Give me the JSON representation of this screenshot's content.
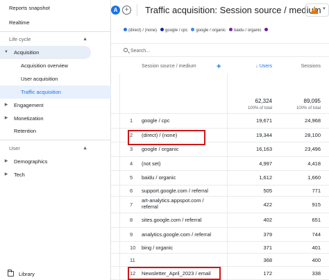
{
  "sidebar": {
    "reports_snapshot": "Reports snapshot",
    "realtime": "Realtime",
    "life_cycle": "Life cycle",
    "acquisition": "Acquisition",
    "acquisition_overview": "Acquisition overview",
    "user_acquisition": "User acquisition",
    "traffic_acquisition": "Traffic acquisition",
    "engagement": "Engagement",
    "monetization": "Monetization",
    "retention": "Retention",
    "user": "User",
    "demographics": "Demographics",
    "tech": "Tech",
    "library": "Library"
  },
  "header": {
    "avatar_letter": "A",
    "add_symbol": "+",
    "title": "Traffic acquisition: Session source / medium",
    "warning_icon": "warning-icon",
    "warning_color": "#e37400"
  },
  "legend": [
    {
      "label": "(direct) / (none)",
      "color": "#1a73e8"
    },
    {
      "label": "google / cpc",
      "color": "#12239e"
    },
    {
      "label": "google / organic",
      "color": "#4285f4"
    },
    {
      "label": "baidu / organic",
      "color": "#7b1fa2"
    },
    {
      "label": "",
      "color": "#6a1b9a"
    }
  ],
  "search": {
    "placeholder": "Search..."
  },
  "table": {
    "col_dimension": "Session source / medium",
    "col_users": "Users",
    "col_sessions": "Sessions",
    "totals": {
      "users": "62,324",
      "users_pct": "100% of total",
      "sessions": "89,095",
      "sessions_pct": "100% of total"
    },
    "rows": [
      {
        "idx": "1",
        "source": "google / cpc",
        "users": "19,671",
        "sessions": "24,968"
      },
      {
        "idx": "2",
        "source": "(direct) / (none)",
        "users": "19,344",
        "sessions": "28,100"
      },
      {
        "idx": "3",
        "source": "google / organic",
        "users": "16,163",
        "sessions": "23,496"
      },
      {
        "idx": "4",
        "source": "(not set)",
        "users": "4,997",
        "sessions": "4,418"
      },
      {
        "idx": "5",
        "source": "baidu / organic",
        "users": "1,612",
        "sessions": "1,660"
      },
      {
        "idx": "6",
        "source": "support.google.com / referral",
        "users": "505",
        "sessions": "771"
      },
      {
        "idx": "7",
        "source": "art-analytics.appspot.com / referral",
        "users": "422",
        "sessions": "915"
      },
      {
        "idx": "8",
        "source": "sites.google.com / referral",
        "users": "402",
        "sessions": "651"
      },
      {
        "idx": "9",
        "source": "analytics.google.com / referral",
        "users": "379",
        "sessions": "744"
      },
      {
        "idx": "10",
        "source": "bing / organic",
        "users": "371",
        "sessions": "401"
      },
      {
        "idx": "11",
        "source": "",
        "users": "368",
        "sessions": "400"
      },
      {
        "idx": "12",
        "source": "Newsletter_April_2023 / email",
        "users": "172",
        "sessions": "338"
      }
    ]
  },
  "highlight_color": "#d01414"
}
